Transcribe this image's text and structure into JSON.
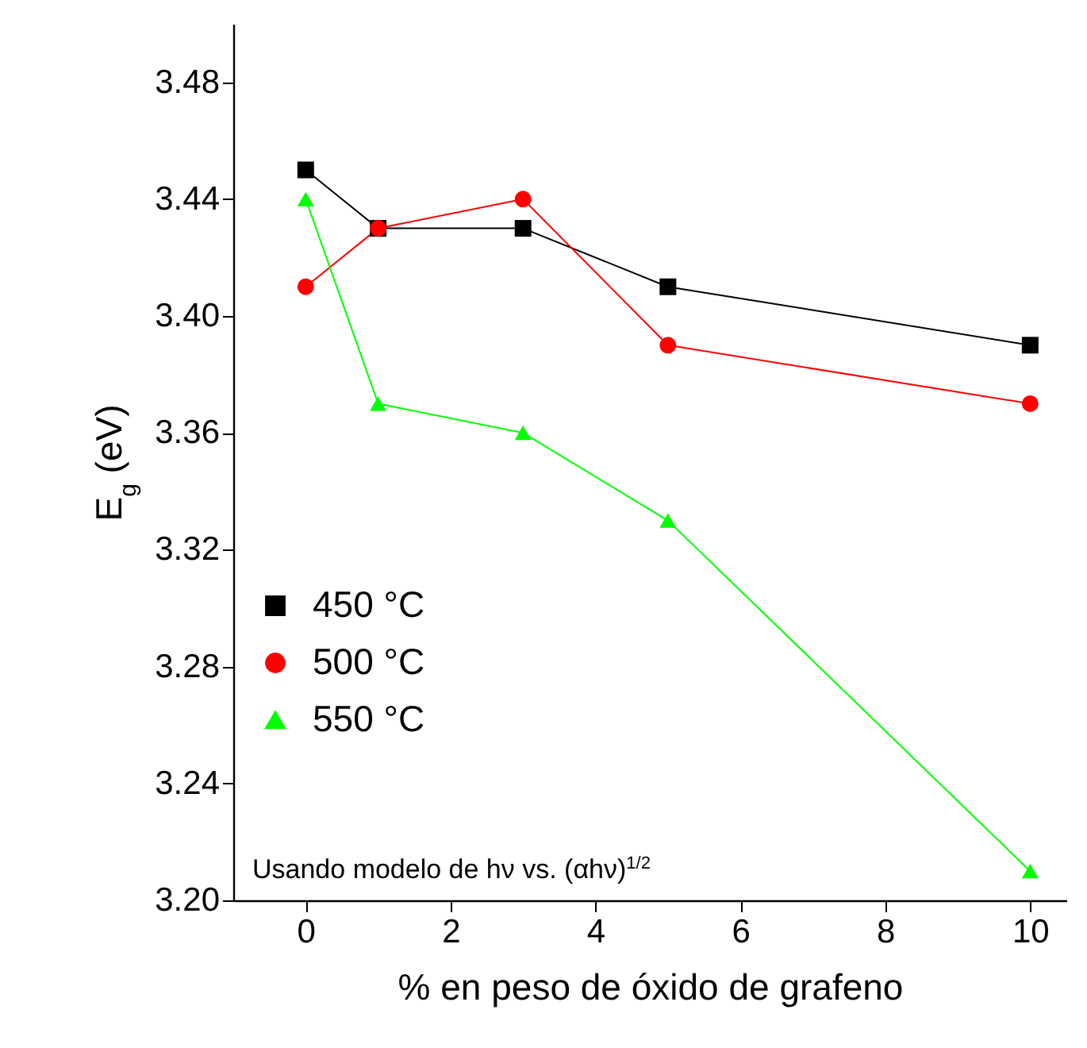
{
  "chart_data": {
    "type": "line",
    "xlabel": "% en peso de óxido de grafeno",
    "ylabel": "E$_{g}$ (eV)",
    "x": [
      0,
      1,
      3,
      5,
      10
    ],
    "series": [
      {
        "name": "450 °C",
        "color": "#000000",
        "marker": "square",
        "values": [
          3.45,
          3.43,
          3.43,
          3.41,
          3.39
        ]
      },
      {
        "name": "500 °C",
        "color": "#ff0000",
        "marker": "circle",
        "values": [
          3.41,
          3.43,
          3.44,
          3.39,
          3.37
        ]
      },
      {
        "name": "550 °C",
        "color": "#00ff00",
        "marker": "triangle",
        "values": [
          3.44,
          3.37,
          3.36,
          3.33,
          3.21
        ]
      }
    ],
    "xlim": [
      -1,
      10.5
    ],
    "xticks": [
      0,
      2,
      4,
      6,
      8,
      10
    ],
    "ylim": [
      3.2,
      3.5
    ],
    "yticks": [
      {
        "value": 3.2,
        "label": "3.20"
      },
      3.24,
      3.28,
      3.32,
      3.36,
      {
        "value": 3.4,
        "label": "3.40"
      },
      3.44,
      3.48
    ],
    "grid": false,
    "legend": "bottom left",
    "line_style": "solid",
    "annotations": [
      "Usando modelo de hν vs. (αhν)$^{1/2}$"
    ]
  }
}
